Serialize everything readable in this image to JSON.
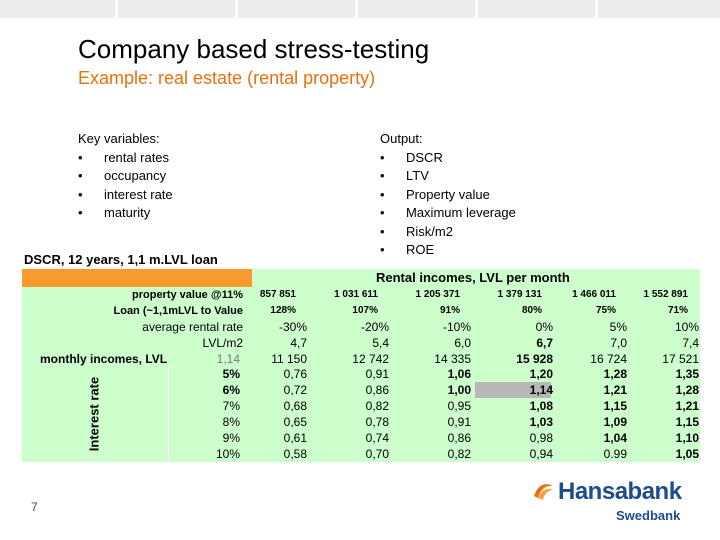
{
  "header": {
    "title": "Company based stress-testing",
    "subtitle": "Example: real estate (rental property)"
  },
  "key_variables": {
    "heading": "Key variables:",
    "items": [
      "rental rates",
      "occupancy",
      "interest rate",
      "maturity"
    ]
  },
  "output": {
    "heading": "Output:",
    "items": [
      "DSCR",
      "LTV",
      "Property value",
      "Maximum leverage",
      "Risk/m2",
      "ROE"
    ]
  },
  "table": {
    "caption": "DSCR, 12 years, 1,1 m.LVL loan",
    "column_group_header": "Rental incomes, LVL per month",
    "vertical_label": "Interest rate",
    "property_value": {
      "label": "property value @11%",
      "values": [
        "857 851",
        "1 031 611",
        "1 205 371",
        "1 379 131",
        "1 466 011",
        "1 552 891"
      ]
    },
    "loan_to_value": {
      "label": "Loan (~1,1mLVL to Value",
      "values": [
        "128%",
        "107%",
        "91%",
        "80%",
        "75%",
        "71%"
      ]
    },
    "average_rental_rate": {
      "label": "average rental rate",
      "values": [
        "-30%",
        "-20%",
        "-10%",
        "0%",
        "5%",
        "10%"
      ]
    },
    "lvl_m2": {
      "label": "LVL/m2",
      "values": [
        "4,7",
        "5,4",
        "6,0",
        "6,7",
        "7,0",
        "7,4"
      ]
    },
    "monthly_incomes": {
      "label": "monthly incomes, LVL",
      "extra": "1,14",
      "values": [
        "11 150",
        "12 742",
        "14 335",
        "15 928",
        "16 724",
        "17 521"
      ]
    },
    "dscr_rows": [
      {
        "rate": "5%",
        "values": [
          "0,76",
          "0,91",
          "1,06",
          "1,20",
          "1,28",
          "1,35"
        ]
      },
      {
        "rate": "6%",
        "values": [
          "0,72",
          "0,86",
          "1,00",
          "1,14",
          "1,21",
          "1,28"
        ]
      },
      {
        "rate": "7%",
        "values": [
          "0,68",
          "0,82",
          "0,95",
          "1,08",
          "1,15",
          "1,21"
        ]
      },
      {
        "rate": "8%",
        "values": [
          "0,65",
          "0,78",
          "0,91",
          "1,03",
          "1,09",
          "1,15"
        ]
      },
      {
        "rate": "9%",
        "values": [
          "0,61",
          "0,74",
          "0,86",
          "0,98",
          "1,04",
          "1,10"
        ]
      },
      {
        "rate": "10%",
        "values": [
          "0,58",
          "0,70",
          "0,82",
          "0,94",
          "0.99",
          "1,05"
        ]
      }
    ]
  },
  "footer": {
    "page_number": "7",
    "logo_name": "Hansabank",
    "logo_sub": "Swedbank"
  },
  "colors": {
    "accent_orange": "#e8700d",
    "table_green": "#ccffcc",
    "header_orange": "#f79b2e",
    "brand_blue": "#1e4b8e"
  }
}
